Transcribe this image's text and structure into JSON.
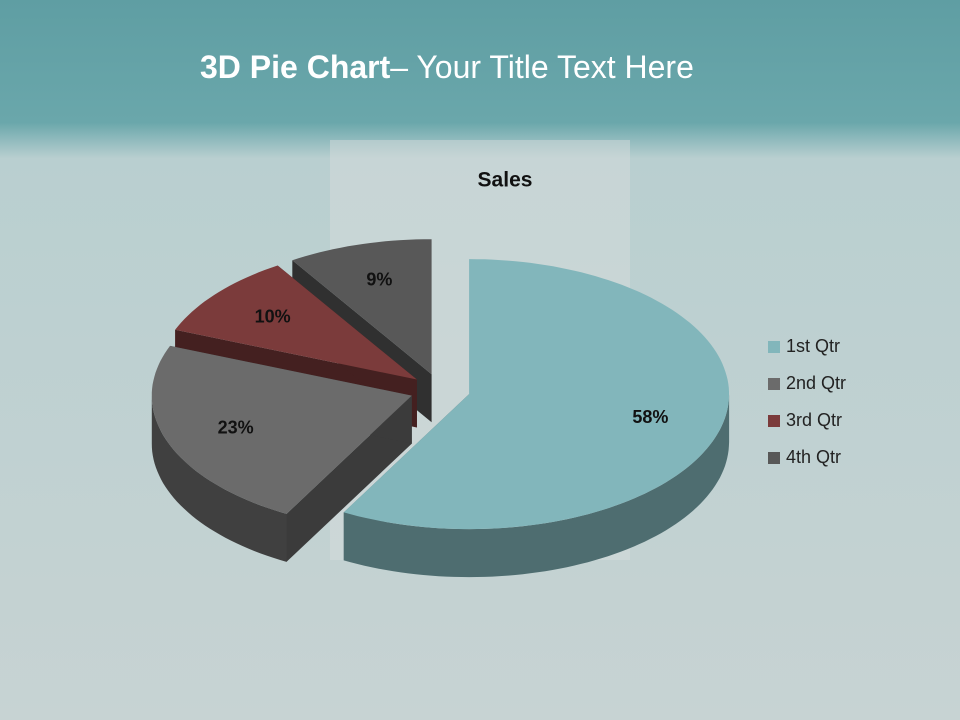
{
  "slide_title": {
    "bold": "3D Pie Chart",
    "rest": "– Your Title Text Here"
  },
  "chart_data": {
    "type": "pie",
    "title": "Sales",
    "categories": [
      "1st Qtr",
      "2nd Qtr",
      "3rd Qtr",
      "4th Qtr"
    ],
    "values": [
      58,
      23,
      10,
      9
    ],
    "value_labels": [
      "58%",
      "23%",
      "10%",
      "9%"
    ],
    "colors": [
      "#82b6bb",
      "#6b6b6b",
      "#7b3b3b",
      "#585858"
    ],
    "legend": "right"
  }
}
